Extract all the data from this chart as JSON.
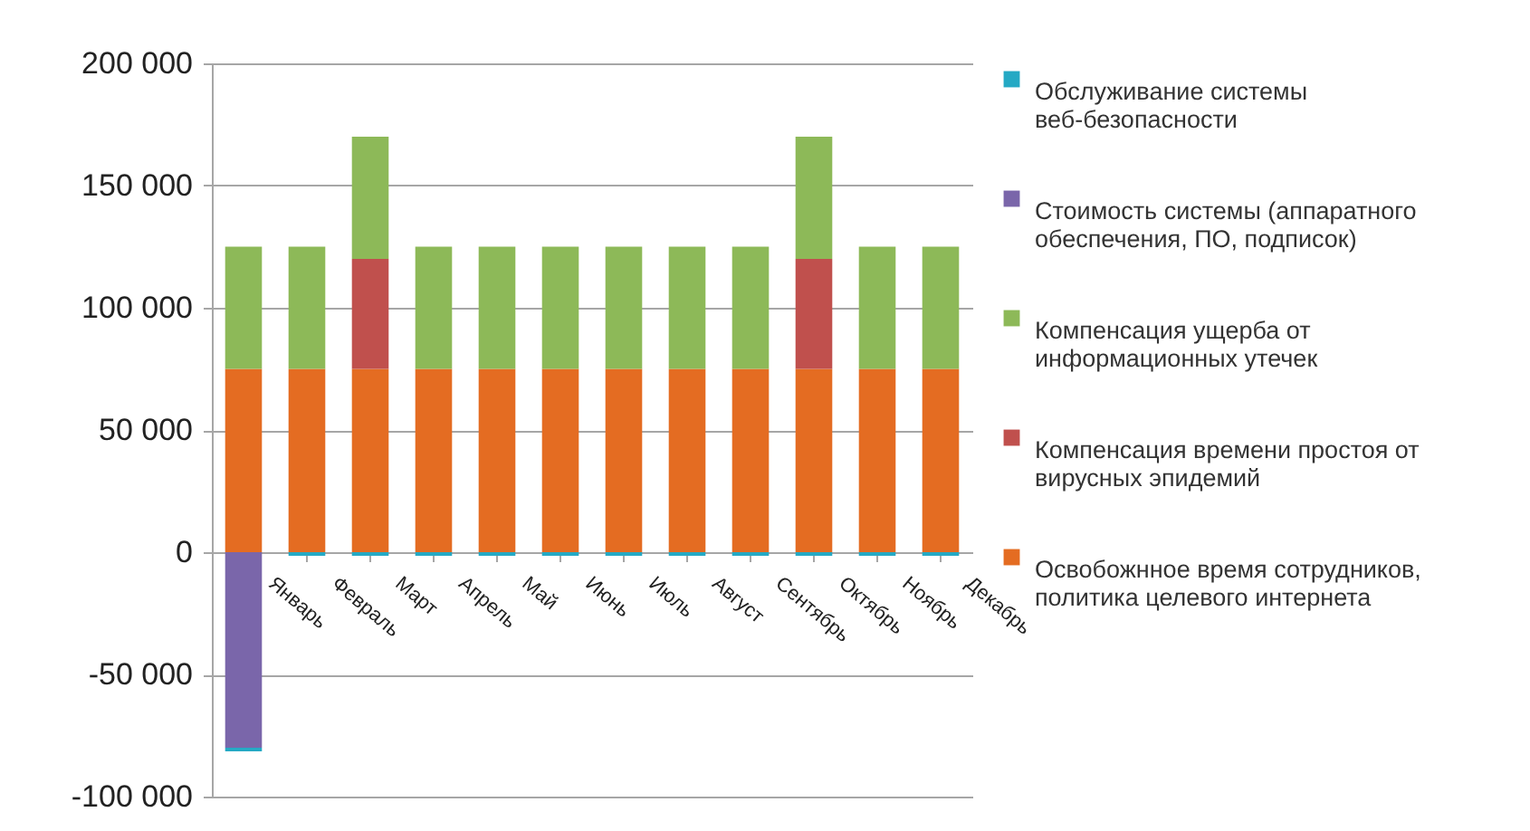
{
  "chart_data": {
    "type": "bar",
    "stacked": true,
    "categories": [
      "Январь",
      "Февраль",
      "Март",
      "Апрель",
      "Май",
      "Июнь",
      "Июль",
      "Август",
      "Сентябрь",
      "Октябрь",
      "Ноябрь",
      "Декабрь"
    ],
    "series": [
      {
        "name": "Освобожнное время сотрудников, политика целевого интернета",
        "color": "#e46c22",
        "values": [
          75000,
          75000,
          75000,
          75000,
          75000,
          75000,
          75000,
          75000,
          75000,
          75000,
          75000,
          75000
        ]
      },
      {
        "name": "Компенсация времени простоя от вирусных эпидемий",
        "color": "#c0504d",
        "values": [
          0,
          0,
          45000,
          0,
          0,
          0,
          0,
          0,
          0,
          45000,
          0,
          0
        ]
      },
      {
        "name": "Компенсация ущерба от информационных утечек",
        "color": "#8db958",
        "values": [
          50000,
          50000,
          50000,
          50000,
          50000,
          50000,
          50000,
          50000,
          50000,
          50000,
          50000,
          50000
        ]
      },
      {
        "name": "Стоимость системы (аппаратного обеспечения, ПО, подписок)",
        "color": "#7a66aa",
        "values": [
          -80000,
          0,
          0,
          0,
          0,
          0,
          0,
          0,
          0,
          0,
          0,
          0
        ]
      },
      {
        "name": "Обслуживание системы веб-безопасности",
        "color": "#25a9c4",
        "values": [
          -1500,
          -1500,
          -1500,
          -1500,
          -1500,
          -1500,
          -1500,
          -1500,
          -1500,
          -1500,
          -1500,
          -1500
        ]
      }
    ],
    "ylim": [
      -100000,
      200000
    ],
    "yticks": [
      {
        "value": -100000,
        "label": "-100 000"
      },
      {
        "value": -50000,
        "label": "-50 000"
      },
      {
        "value": 0,
        "label": "0"
      },
      {
        "value": 50000,
        "label": "50 000"
      },
      {
        "value": 100000,
        "label": "100 000"
      },
      {
        "value": 150000,
        "label": "150 000"
      },
      {
        "value": 200000,
        "label": "200 000"
      }
    ],
    "grid": "y",
    "legend": "right"
  }
}
